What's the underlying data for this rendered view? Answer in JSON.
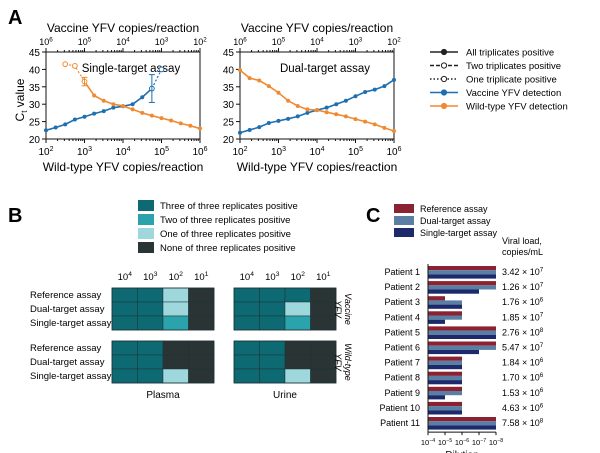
{
  "panel_letters": {
    "a": "A",
    "b": "B",
    "c": "C"
  },
  "colors": {
    "vaccine": "#1f6fb0",
    "wildtype": "#f08a32",
    "legend_black": "#222222",
    "heat_three": "#0e6a72",
    "heat_two": "#2aa3ad",
    "heat_one": "#9fd8dc",
    "heat_none": "#2a3434",
    "bar_reference": "#8b2232",
    "bar_dual": "#5a7ea4",
    "bar_single": "#1c2a6c"
  },
  "panel_a": {
    "legend": [
      {
        "label": "All triplicates positive",
        "style": "solid"
      },
      {
        "label": "Two triplicates positive",
        "style": "dashed"
      },
      {
        "label": "One triplicate positive",
        "style": "dotted"
      },
      {
        "label": "Vaccine YFV detection",
        "style": "vaccine"
      },
      {
        "label": "Wild-type YFV  detection",
        "style": "wildtype"
      }
    ],
    "y_axis_main": "C",
    "y_axis_sub": "t",
    "y_axis_rest": " value"
  },
  "chart_data": [
    {
      "type": "line",
      "title": "Single-target assay",
      "xlabel": "Wild-type YFV copies/reaction",
      "x2label": "Vaccine YFV copies/reaction",
      "ylabel": "Ct value",
      "xscale": "log",
      "xlim": [
        100,
        1000000
      ],
      "x_ticks": [
        "10",
        "10",
        "10",
        "10",
        "10"
      ],
      "x_tick_exp": [
        "2",
        "3",
        "4",
        "5",
        "6"
      ],
      "x2scale": "log-reversed",
      "x2lim": [
        1000000,
        100
      ],
      "x2_ticks": [
        "10",
        "10",
        "10",
        "10",
        "10"
      ],
      "x2_tick_exp": [
        "6",
        "5",
        "4",
        "3",
        "2"
      ],
      "ylim": [
        20,
        45
      ],
      "y_ticks": [
        "20",
        "25",
        "30",
        "35",
        "40",
        "45"
      ],
      "series": [
        {
          "name": "Vaccine YFV detection",
          "color": "#1f6fb0",
          "x": [
            100,
            178,
            316,
            562,
            1000,
            1778,
            3162,
            5623,
            10000,
            17783,
            31623,
            56234
          ],
          "y": [
            22.5,
            23.3,
            24.2,
            25.6,
            26.4,
            27.3,
            28.0,
            29.0,
            29.4,
            30.0,
            32.0,
            34.5
          ],
          "segments": [
            {
              "from": 0,
              "to": 11,
              "style": "solid"
            }
          ],
          "extra": [
            {
              "x": 56234,
              "y": 34.5
            },
            {
              "x": 100000,
              "y": 40.0
            }
          ],
          "extra_style": "dotted",
          "error_x": [
            56234
          ],
          "error_y": [
            34.5
          ],
          "error_d": [
            4.0
          ]
        },
        {
          "name": "Wild-type YFV detection",
          "color": "#f08a32",
          "x": [
            1000,
            1778,
            3162,
            5623,
            10000,
            17783,
            31623,
            56234,
            100000,
            177828,
            316228,
            562341,
            1000000
          ],
          "y": [
            36.5,
            32.5,
            31.0,
            30.0,
            29.5,
            28.5,
            27.5,
            26.7,
            26.0,
            25.3,
            24.5,
            23.8,
            23.0
          ],
          "extra": [
            {
              "x": 316,
              "y": 41.5
            },
            {
              "x": 562,
              "y": 41.0
            },
            {
              "x": 1000,
              "y": 36.5
            }
          ],
          "extra_style": "dotted",
          "error_x": [
            1000
          ],
          "error_y": [
            36.5
          ],
          "error_d": [
            1.2
          ]
        }
      ]
    },
    {
      "type": "line",
      "title": "Dual-target assay",
      "xlabel": "Wild-type YFV copies/reaction",
      "x2label": "Vaccine YFV copies/reaction",
      "ylabel": "Ct value",
      "xscale": "log",
      "xlim": [
        100,
        1000000
      ],
      "x_ticks": [
        "10",
        "10",
        "10",
        "10",
        "10"
      ],
      "x_tick_exp": [
        "2",
        "3",
        "4",
        "5",
        "6"
      ],
      "x2scale": "log-reversed",
      "x2lim": [
        1000000,
        100
      ],
      "x2_ticks": [
        "10",
        "10",
        "10",
        "10",
        "10"
      ],
      "x2_tick_exp": [
        "6",
        "5",
        "4",
        "3",
        "2"
      ],
      "ylim": [
        20,
        45
      ],
      "y_ticks": [
        "20",
        "25",
        "30",
        "35",
        "40",
        "45"
      ],
      "series": [
        {
          "name": "Vaccine YFV detection",
          "color": "#1f6fb0",
          "x": [
            100,
            178,
            316,
            562,
            1000,
            1778,
            3162,
            5623,
            10000,
            17783,
            31623,
            56234,
            100000,
            177828,
            316228,
            562341,
            1000000
          ],
          "y": [
            21.8,
            22.6,
            23.4,
            24.6,
            25.2,
            25.8,
            26.5,
            27.5,
            28.3,
            29.0,
            30.0,
            31.0,
            32.3,
            33.5,
            34.2,
            35.2,
            37.0
          ]
        },
        {
          "name": "Wild-type YFV detection",
          "color": "#f08a32",
          "x": [
            100,
            178,
            316,
            562,
            1000,
            1778,
            3162,
            5623,
            10000,
            17783,
            31623,
            56234,
            100000,
            177828,
            316228,
            562341,
            1000000
          ],
          "y": [
            39.8,
            37.5,
            36.8,
            35.2,
            33.3,
            31.0,
            29.5,
            28.5,
            28.3,
            27.7,
            27.1,
            26.5,
            25.7,
            25.0,
            24.2,
            23.2,
            22.3
          ]
        }
      ]
    },
    {
      "type": "heatmap",
      "legend": [
        {
          "label": "Three of three replicates positive",
          "color": "#0e6a72"
        },
        {
          "label": "Two of three replicates positive",
          "color": "#2aa3ad"
        },
        {
          "label": "One of three replicates positive",
          "color": "#9fd8dc"
        },
        {
          "label": "None of three replicates positive",
          "color": "#2a3434"
        }
      ],
      "dilution_labels": [
        "10",
        "10",
        "10",
        "10"
      ],
      "dilution_exp": [
        "4",
        "3",
        "2",
        "1"
      ],
      "row_labels": [
        "Reference assay",
        "Dual-target assay",
        "Single-target assay"
      ],
      "columns": [
        "Plasma",
        "Urine"
      ],
      "groups": [
        {
          "name": "Vaccine YFV",
          "line1": "Vaccine",
          "line2": "YFV",
          "plasma": [
            [
              3,
              3,
              1,
              0
            ],
            [
              3,
              3,
              1,
              0
            ],
            [
              3,
              3,
              2,
              0
            ]
          ],
          "urine": [
            [
              3,
              3,
              3,
              0
            ],
            [
              3,
              3,
              1,
              0
            ],
            [
              3,
              3,
              2,
              0
            ]
          ]
        },
        {
          "name": "Wild-type YFV",
          "line1": "Wild-type",
          "line2": "YFV",
          "plasma": [
            [
              3,
              3,
              0,
              0
            ],
            [
              3,
              3,
              0,
              0
            ],
            [
              3,
              3,
              1,
              0
            ]
          ],
          "urine": [
            [
              3,
              3,
              0,
              0
            ],
            [
              3,
              3,
              0,
              0
            ],
            [
              3,
              3,
              1,
              0
            ]
          ]
        }
      ]
    },
    {
      "type": "bar",
      "orientation": "horizontal",
      "xlabel": "Dilution",
      "xscale": "log",
      "x_ticks": [
        "10",
        "10",
        "10",
        "10",
        "10"
      ],
      "x_tick_exp": [
        "−4",
        "−5",
        "−6",
        "−7",
        "−8"
      ],
      "xlim_exp": [
        4,
        8
      ],
      "legend": [
        "Reference assay",
        "Dual-target assay",
        "Single-target assay"
      ],
      "viral_load_header": [
        "Viral load,",
        "copies/mL"
      ],
      "patients": [
        {
          "name": "Patient 1",
          "load": "3.42 × 10",
          "load_exp": "7",
          "exp": [
            8,
            8,
            8
          ]
        },
        {
          "name": "Patient 2",
          "load": "1.26 × 10",
          "load_exp": "7",
          "exp": [
            8,
            8,
            7
          ]
        },
        {
          "name": "Patient 3",
          "load": "1.76 × 10",
          "load_exp": "6",
          "exp": [
            5,
            6,
            6
          ]
        },
        {
          "name": "Patient 4",
          "load": "1.85 × 10",
          "load_exp": "7",
          "exp": [
            6,
            6,
            5
          ]
        },
        {
          "name": "Patient 5",
          "load": "2.76 × 10",
          "load_exp": "8",
          "exp": [
            8,
            8,
            8
          ]
        },
        {
          "name": "Patient 6",
          "load": "5.47 × 10",
          "load_exp": "7",
          "exp": [
            8,
            8,
            7
          ]
        },
        {
          "name": "Patient 7",
          "load": "1.84 × 10",
          "load_exp": "6",
          "exp": [
            6,
            6,
            6
          ]
        },
        {
          "name": "Patient 8",
          "load": "1.70 × 10",
          "load_exp": "6",
          "exp": [
            6,
            6,
            6
          ]
        },
        {
          "name": "Patient 9",
          "load": "1.53 × 10",
          "load_exp": "6",
          "exp": [
            6,
            6,
            5
          ]
        },
        {
          "name": "Patient 10",
          "load": "4.63 × 10",
          "load_exp": "6",
          "exp": [
            6,
            6,
            6
          ]
        },
        {
          "name": "Patient 11",
          "load": "7.58 × 10",
          "load_exp": "8",
          "exp": [
            8,
            8,
            8
          ]
        }
      ]
    }
  ]
}
